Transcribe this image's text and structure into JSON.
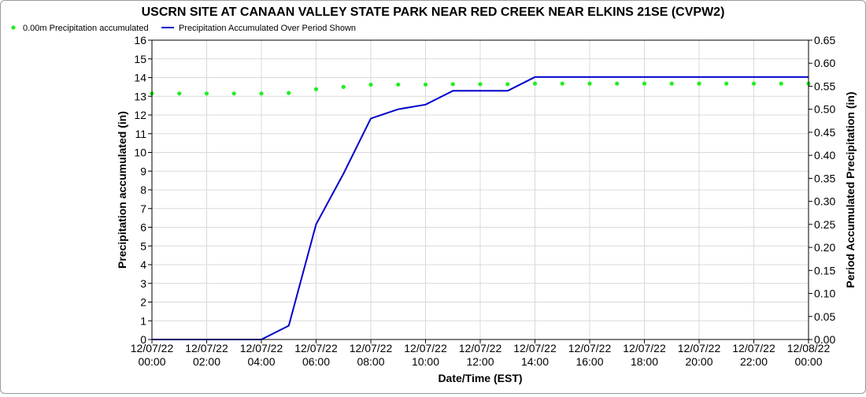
{
  "chart_data": {
    "type": "line",
    "title": "USCRN SITE AT CANAAN VALLEY STATE PARK NEAR RED CREEK NEAR ELKINS 21SE (CVPW2)",
    "xlabel": "Date/Time (EST)",
    "ylabel_left": "Precipitation accumulated (in)",
    "ylabel_right": "Period Accumulated Precipitation (in)",
    "ylim_left": [
      0,
      16
    ],
    "ylim_right": [
      0,
      0.65
    ],
    "yticks_left": [
      "0",
      "1",
      "2",
      "3",
      "4",
      "5",
      "6",
      "7",
      "8",
      "9",
      "10",
      "11",
      "12",
      "13",
      "14",
      "15",
      "16"
    ],
    "yticks_right": [
      "0.00",
      "0.05",
      "0.10",
      "0.15",
      "0.20",
      "0.25",
      "0.30",
      "0.35",
      "0.40",
      "0.45",
      "0.50",
      "0.55",
      "0.60",
      "0.65"
    ],
    "x_ticks": [
      {
        "date": "12/07/22",
        "time": "00:00"
      },
      {
        "date": "12/07/22",
        "time": "02:00"
      },
      {
        "date": "12/07/22",
        "time": "04:00"
      },
      {
        "date": "12/07/22",
        "time": "06:00"
      },
      {
        "date": "12/07/22",
        "time": "08:00"
      },
      {
        "date": "12/07/22",
        "time": "10:00"
      },
      {
        "date": "12/07/22",
        "time": "12:00"
      },
      {
        "date": "12/07/22",
        "time": "14:00"
      },
      {
        "date": "12/07/22",
        "time": "16:00"
      },
      {
        "date": "12/07/22",
        "time": "18:00"
      },
      {
        "date": "12/07/22",
        "time": "20:00"
      },
      {
        "date": "12/07/22",
        "time": "22:00"
      },
      {
        "date": "12/08/22",
        "time": "00:00"
      }
    ],
    "grid": true,
    "legend_position": "top-left",
    "series": [
      {
        "name": "0.00m Precipitation accumulated",
        "axis": "left",
        "style": "dots",
        "color": "#22ee22",
        "x": [
          "12/07/22 00:00",
          "12/07/22 01:00",
          "12/07/22 02:00",
          "12/07/22 03:00",
          "12/07/22 04:00",
          "12/07/22 05:00",
          "12/07/22 06:00",
          "12/07/22 07:00",
          "12/07/22 08:00",
          "12/07/22 09:00",
          "12/07/22 10:00",
          "12/07/22 11:00",
          "12/07/22 12:00",
          "12/07/22 13:00",
          "12/07/22 14:00",
          "12/07/22 15:00",
          "12/07/22 16:00",
          "12/07/22 17:00",
          "12/07/22 18:00",
          "12/07/22 19:00",
          "12/07/22 20:00",
          "12/07/22 21:00",
          "12/07/22 22:00",
          "12/07/22 23:00",
          "12/08/22 00:00"
        ],
        "values": [
          13.15,
          13.15,
          13.15,
          13.15,
          13.15,
          13.18,
          13.38,
          13.5,
          13.62,
          13.63,
          13.63,
          13.65,
          13.65,
          13.65,
          13.68,
          13.68,
          13.68,
          13.68,
          13.68,
          13.68,
          13.68,
          13.68,
          13.68,
          13.68,
          13.68
        ]
      },
      {
        "name": "Precipitation Accumulated Over Period Shown",
        "axis": "right",
        "style": "line",
        "color": "#0000cc",
        "x": [
          "12/07/22 00:00",
          "12/07/22 01:00",
          "12/07/22 02:00",
          "12/07/22 03:00",
          "12/07/22 04:00",
          "12/07/22 05:00",
          "12/07/22 06:00",
          "12/07/22 07:00",
          "12/07/22 08:00",
          "12/07/22 09:00",
          "12/07/22 10:00",
          "12/07/22 11:00",
          "12/07/22 12:00",
          "12/07/22 13:00",
          "12/07/22 14:00",
          "12/07/22 15:00",
          "12/07/22 16:00",
          "12/07/22 17:00",
          "12/07/22 18:00",
          "12/07/22 19:00",
          "12/07/22 20:00",
          "12/07/22 21:00",
          "12/07/22 22:00",
          "12/07/22 23:00",
          "12/08/22 00:00"
        ],
        "values": [
          0.0,
          0.0,
          0.0,
          0.0,
          0.0,
          0.03,
          0.25,
          0.36,
          0.48,
          0.5,
          0.51,
          0.54,
          0.54,
          0.54,
          0.57,
          0.57,
          0.57,
          0.57,
          0.57,
          0.57,
          0.57,
          0.57,
          0.57,
          0.57,
          0.57
        ]
      }
    ]
  }
}
